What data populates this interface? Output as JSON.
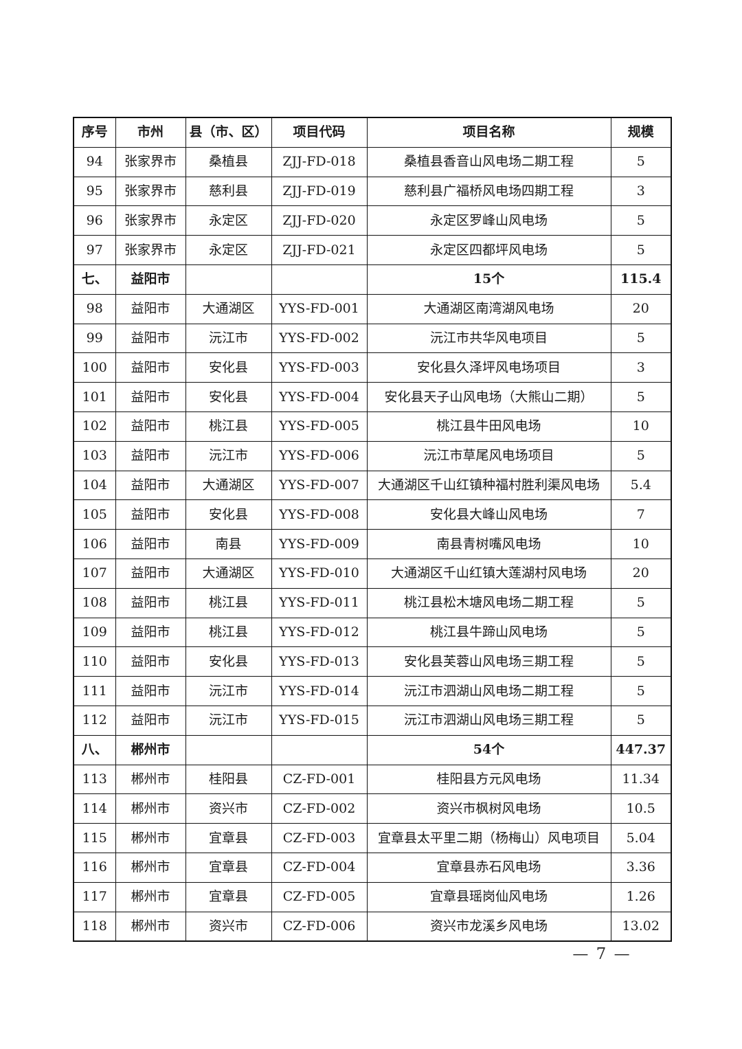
{
  "page": {
    "number_label": "— 7 —"
  },
  "table": {
    "columns": [
      "序号",
      "市州",
      "县（市、区）",
      "项目代码",
      "项目名称",
      "规模"
    ],
    "rows": [
      {
        "type": "data",
        "no": "94",
        "city": "张家界市",
        "county": "桑植县",
        "code": "ZJJ-FD-018",
        "name": "桑植县香音山风电场二期工程",
        "scale": "5"
      },
      {
        "type": "data",
        "no": "95",
        "city": "张家界市",
        "county": "慈利县",
        "code": "ZJJ-FD-019",
        "name": "慈利县广福桥风电场四期工程",
        "scale": "3"
      },
      {
        "type": "data",
        "no": "96",
        "city": "张家界市",
        "county": "永定区",
        "code": "ZJJ-FD-020",
        "name": "永定区罗峰山风电场",
        "scale": "5"
      },
      {
        "type": "data",
        "no": "97",
        "city": "张家界市",
        "county": "永定区",
        "code": "ZJJ-FD-021",
        "name": "永定区四都坪风电场",
        "scale": "5"
      },
      {
        "type": "section",
        "no": "七、",
        "city": "益阳市",
        "county": "",
        "code": "",
        "name": "15个",
        "scale": "115.4"
      },
      {
        "type": "data",
        "no": "98",
        "city": "益阳市",
        "county": "大通湖区",
        "code": "YYS-FD-001",
        "name": "大通湖区南湾湖风电场",
        "scale": "20"
      },
      {
        "type": "data",
        "no": "99",
        "city": "益阳市",
        "county": "沅江市",
        "code": "YYS-FD-002",
        "name": "沅江市共华风电项目",
        "scale": "5"
      },
      {
        "type": "data",
        "no": "100",
        "city": "益阳市",
        "county": "安化县",
        "code": "YYS-FD-003",
        "name": "安化县久泽坪风电场项目",
        "scale": "3"
      },
      {
        "type": "data",
        "no": "101",
        "city": "益阳市",
        "county": "安化县",
        "code": "YYS-FD-004",
        "name": "安化县天子山风电场（大熊山二期）",
        "scale": "5"
      },
      {
        "type": "data",
        "no": "102",
        "city": "益阳市",
        "county": "桃江县",
        "code": "YYS-FD-005",
        "name": "桃江县牛田风电场",
        "scale": "10"
      },
      {
        "type": "data",
        "no": "103",
        "city": "益阳市",
        "county": "沅江市",
        "code": "YYS-FD-006",
        "name": "沅江市草尾风电场项目",
        "scale": "5"
      },
      {
        "type": "data",
        "no": "104",
        "city": "益阳市",
        "county": "大通湖区",
        "code": "YYS-FD-007",
        "name": "大通湖区千山红镇种福村胜利渠风电场",
        "scale": "5.4"
      },
      {
        "type": "data",
        "no": "105",
        "city": "益阳市",
        "county": "安化县",
        "code": "YYS-FD-008",
        "name": "安化县大峰山风电场",
        "scale": "7"
      },
      {
        "type": "data",
        "no": "106",
        "city": "益阳市",
        "county": "南县",
        "code": "YYS-FD-009",
        "name": "南县青树嘴风电场",
        "scale": "10"
      },
      {
        "type": "data",
        "no": "107",
        "city": "益阳市",
        "county": "大通湖区",
        "code": "YYS-FD-010",
        "name": "大通湖区千山红镇大莲湖村风电场",
        "scale": "20"
      },
      {
        "type": "data",
        "no": "108",
        "city": "益阳市",
        "county": "桃江县",
        "code": "YYS-FD-011",
        "name": "桃江县松木塘风电场二期工程",
        "scale": "5"
      },
      {
        "type": "data",
        "no": "109",
        "city": "益阳市",
        "county": "桃江县",
        "code": "YYS-FD-012",
        "name": "桃江县牛蹄山风电场",
        "scale": "5"
      },
      {
        "type": "data",
        "no": "110",
        "city": "益阳市",
        "county": "安化县",
        "code": "YYS-FD-013",
        "name": "安化县芙蓉山风电场三期工程",
        "scale": "5"
      },
      {
        "type": "data",
        "no": "111",
        "city": "益阳市",
        "county": "沅江市",
        "code": "YYS-FD-014",
        "name": "沅江市泗湖山风电场二期工程",
        "scale": "5"
      },
      {
        "type": "data",
        "no": "112",
        "city": "益阳市",
        "county": "沅江市",
        "code": "YYS-FD-015",
        "name": "沅江市泗湖山风电场三期工程",
        "scale": "5"
      },
      {
        "type": "section",
        "no": "八、",
        "city": "郴州市",
        "county": "",
        "code": "",
        "name": "54个",
        "scale": "447.37"
      },
      {
        "type": "data",
        "no": "113",
        "city": "郴州市",
        "county": "桂阳县",
        "code": "CZ-FD-001",
        "name": "桂阳县方元风电场",
        "scale": "11.34"
      },
      {
        "type": "data",
        "no": "114",
        "city": "郴州市",
        "county": "资兴市",
        "code": "CZ-FD-002",
        "name": "资兴市枫树风电场",
        "scale": "10.5"
      },
      {
        "type": "data",
        "no": "115",
        "city": "郴州市",
        "county": "宜章县",
        "code": "CZ-FD-003",
        "name": "宜章县太平里二期（杨梅山）风电项目",
        "scale": "5.04"
      },
      {
        "type": "data",
        "no": "116",
        "city": "郴州市",
        "county": "宜章县",
        "code": "CZ-FD-004",
        "name": "宜章县赤石风电场",
        "scale": "3.36"
      },
      {
        "type": "data",
        "no": "117",
        "city": "郴州市",
        "county": "宜章县",
        "code": "CZ-FD-005",
        "name": "宜章县瑶岗仙风电场",
        "scale": "1.26"
      },
      {
        "type": "data",
        "no": "118",
        "city": "郴州市",
        "county": "资兴市",
        "code": "CZ-FD-006",
        "name": "资兴市龙溪乡风电场",
        "scale": "13.02"
      }
    ]
  }
}
